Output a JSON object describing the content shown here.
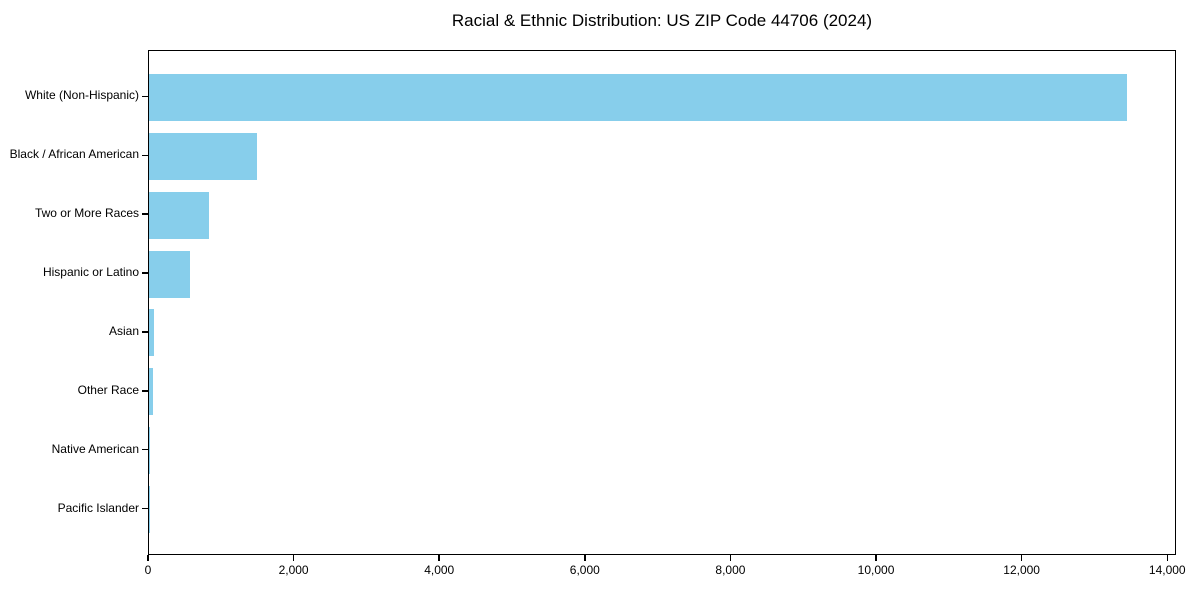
{
  "colors": {
    "bar_fill": "#87CEEB",
    "axis": "#000000",
    "background": "#FFFFFF",
    "text": "#000000"
  },
  "chart_data": {
    "type": "bar",
    "orientation": "horizontal",
    "title": "Racial & Ethnic Distribution: US ZIP Code 44706 (2024)",
    "xlabel": "",
    "ylabel": "",
    "categories": [
      "White (Non-Hispanic)",
      "Black / African American",
      "Two or More Races",
      "Hispanic or Latino",
      "Asian",
      "Other Race",
      "Native American",
      "Pacific Islander"
    ],
    "values": [
      13440,
      1490,
      830,
      570,
      65,
      50,
      15,
      4
    ],
    "xlim": [
      0,
      14120
    ],
    "xticks": [
      0,
      2000,
      4000,
      6000,
      8000,
      10000,
      12000,
      14000
    ],
    "xtick_labels": [
      "0",
      "2,000",
      "4,000",
      "6,000",
      "8,000",
      "10,000",
      "12,000",
      "14,000"
    ],
    "grid": false,
    "legend": "none",
    "bar_color": "#87CEEB"
  }
}
